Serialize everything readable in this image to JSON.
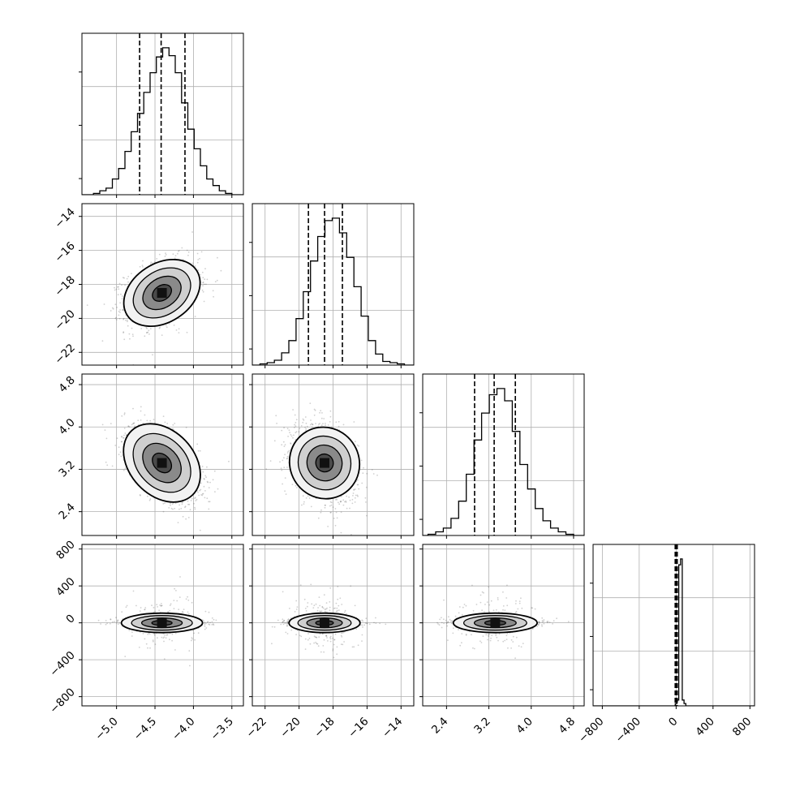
{
  "chart_data": {
    "type": "corner",
    "title": "",
    "grid": true,
    "parameters": [
      {
        "id": "p0",
        "range": [
          -5.45,
          -3.35
        ],
        "ticks": [
          -5.0,
          -4.5,
          -4.0,
          -3.5
        ],
        "tick_labels": [
          "−5.0",
          "−4.5",
          "−4.0",
          "−3.5"
        ]
      },
      {
        "id": "p1",
        "range": [
          -22.75,
          -13.25
        ],
        "ticks": [
          -22,
          -20,
          -18,
          -16,
          -14
        ],
        "tick_labels": [
          "−22",
          "−20",
          "−18",
          "−16",
          "−14"
        ]
      },
      {
        "id": "p2",
        "range": [
          1.95,
          5.0
        ],
        "ticks": [
          2.4,
          3.2,
          4.0,
          4.8
        ],
        "tick_labels": [
          "2.4",
          "3.2",
          "4.0",
          "4.8"
        ]
      },
      {
        "id": "p3",
        "range": [
          -900,
          850
        ],
        "ticks": [
          -800,
          -400,
          0,
          400,
          800
        ],
        "tick_labels": [
          "−800",
          "−400",
          "0",
          "400",
          "800"
        ]
      }
    ],
    "quantiles": [
      [
        -4.7,
        -4.42,
        -4.11
      ],
      [
        -19.45,
        -18.5,
        -17.45
      ],
      [
        2.93,
        3.3,
        3.7
      ],
      [
        -10,
        0,
        12
      ]
    ],
    "histograms": [
      [
        1,
        3,
        5,
        12,
        20,
        33,
        48,
        62,
        78,
        93,
        105,
        112,
        106,
        93,
        70,
        50,
        35,
        22,
        12,
        7,
        3,
        1
      ],
      [
        1,
        2,
        4,
        10,
        20,
        38,
        60,
        85,
        105,
        118,
        120,
        108,
        88,
        64,
        40,
        20,
        9,
        3,
        2,
        1
      ],
      [
        1,
        3,
        6,
        14,
        28,
        50,
        78,
        100,
        115,
        120,
        110,
        85,
        58,
        38,
        22,
        12,
        6,
        3,
        1
      ],
      [
        0,
        0,
        0,
        0,
        0,
        0,
        0,
        0,
        0,
        0,
        2,
        5,
        120,
        125,
        5,
        2,
        0,
        0,
        0,
        0,
        0
      ]
    ],
    "correlations": {
      "1-0": 0.3,
      "2-0": -0.5,
      "2-1": -0.3,
      "3-0": 0.0,
      "3-1": 0.0,
      "3-2": 0.0
    },
    "sigma": [
      0.24,
      0.95,
      0.36,
      18
    ],
    "mean": [
      -4.41,
      -18.5,
      3.32,
      0
    ],
    "scatter_sigma_row3": 80
  }
}
